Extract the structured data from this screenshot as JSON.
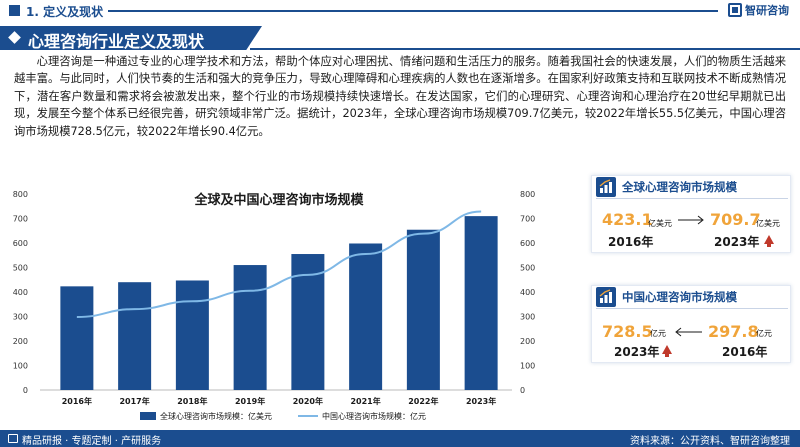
{
  "topbar": {
    "section": "1. 定义及现状",
    "brand": "智研咨询"
  },
  "banner": {
    "title": "心理咨询行业定义及现状"
  },
  "paragraph": "心理咨询是一种通过专业的心理学技术和方法，帮助个体应对心理困扰、情绪问题和生活压力的服务。随着我国社会的快速发展，人们的物质生活越来越丰富。与此同时，人们快节奏的生活和强大的竞争压力，导致心理障碍和心理疾病的人数也在逐渐增多。在国家利好政策支持和互联网技术不断成熟情况下，潜在客户数量和需求将会被激发出来，整个行业的市场规模持续快速增长。在发达国家，它们的心理研究、心理咨询和心理治疗在20世纪早期就已出现，发展至今整个体系已经很完善，研究领域非常广泛。据统计，2023年，全球心理咨询市场规模709.7亿美元，较2022年增长55.5亿美元，中国心理咨询市场规模728.5亿元，较2022年增长90.4亿元。",
  "colors": {
    "primary": "#1b4d8f",
    "bar": "#1b4d8f",
    "line": "#7fb8e6",
    "accent": "#f0a43a",
    "up": "#c0392b"
  },
  "chart_data": {
    "type": "bar",
    "title": "全球及中国心理咨询市场规模",
    "categories": [
      "2016年",
      "2017年",
      "2018年",
      "2019年",
      "2020年",
      "2021年",
      "2022年",
      "2023年"
    ],
    "series": [
      {
        "name": "全球心理咨询市场规模：亿美元",
        "type": "bar",
        "axis": "left",
        "values": [
          423.1,
          440,
          447,
          510,
          555,
          598,
          654.2,
          709.7
        ]
      },
      {
        "name": "中国心理咨询市场规模：亿元",
        "type": "line",
        "axis": "right",
        "values": [
          297.8,
          330,
          362,
          405,
          470,
          555,
          638.1,
          728.5
        ]
      }
    ],
    "ylim_left": [
      0,
      800
    ],
    "ylim_right": [
      0,
      800
    ],
    "yticks": [
      "0",
      "100",
      "200",
      "300",
      "400",
      "500",
      "600",
      "700",
      "800"
    ],
    "legend_position": "bottom"
  },
  "cards": {
    "global": {
      "title": "全球心理咨询市场规模",
      "icon": "bar-chart-icon",
      "left_value": "423.1",
      "left_unit": "亿美元",
      "left_year": "2016年",
      "right_value": "709.7",
      "right_unit": "亿美元",
      "right_year": "2023年"
    },
    "china": {
      "title": "中国心理咨询市场规模",
      "icon": "bar-chart-icon",
      "left_value": "728.5",
      "left_unit": "亿元",
      "left_year": "2023年",
      "right_value": "297.8",
      "right_unit": "亿元",
      "right_year": "2016年"
    }
  },
  "footer": {
    "left": "精品研报 · 专题定制 · 产研服务",
    "right": "资料来源：公开资料、智研咨询整理"
  }
}
